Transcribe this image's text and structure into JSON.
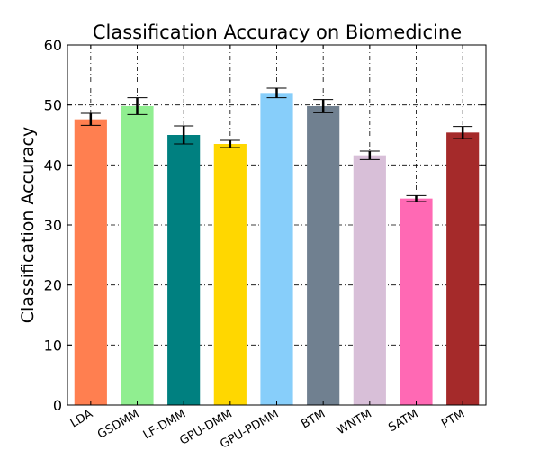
{
  "chart_data": {
    "type": "bar",
    "title": "Classification Accuracy on Biomedicine",
    "xlabel": "",
    "ylabel": "Classification Accuracy",
    "ylim": [
      0,
      60
    ],
    "yticks": [
      "0",
      "10",
      "20",
      "30",
      "40",
      "50",
      "60"
    ],
    "grid": true,
    "categories": [
      "LDA",
      "GSDMM",
      "LF-DMM",
      "GPU-DMM",
      "GPU-PDMM",
      "BTM",
      "WNTM",
      "SATM",
      "PTM"
    ],
    "values": [
      47.6,
      49.8,
      45.0,
      43.5,
      52.0,
      49.8,
      41.6,
      34.4,
      45.4
    ],
    "errors": [
      1.0,
      1.4,
      1.5,
      0.6,
      0.8,
      1.1,
      0.7,
      0.5,
      1.0
    ],
    "colors": [
      "#ff7f50",
      "#90ee90",
      "#008080",
      "#ffd700",
      "#87cefa",
      "#708090",
      "#d8bfd8",
      "#ff69b4",
      "#a52a2a"
    ]
  }
}
